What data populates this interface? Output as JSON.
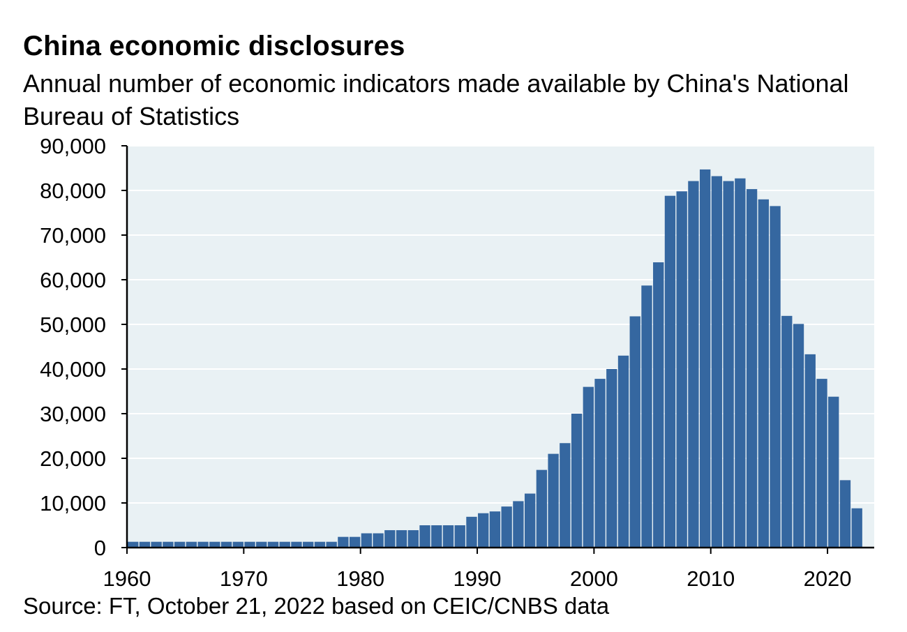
{
  "title": "China economic disclosures",
  "subtitle": "Annual number of economic indicators made available by China's National Bureau of Statistics",
  "source": "Source: FT, October 21, 2022 based on CEIC/CNBS data",
  "colors": {
    "bar": "#3567a0",
    "plot_background": "#e9f1f4",
    "gridline": "#ffffff",
    "axis": "#000000"
  },
  "chart_data": {
    "type": "bar",
    "title": "China economic disclosures",
    "subtitle": "Annual number of economic indicators made available by China's National Bureau of Statistics",
    "xlabel": "",
    "ylabel": "",
    "xlim": [
      1960,
      2024
    ],
    "ylim": [
      0,
      90000
    ],
    "x_ticks": [
      1960,
      1970,
      1980,
      1990,
      2000,
      2010,
      2020
    ],
    "x_tick_labels": [
      "1960",
      "1970",
      "1980",
      "1990",
      "2000",
      "2010",
      "2020"
    ],
    "y_ticks": [
      0,
      10000,
      20000,
      30000,
      40000,
      50000,
      60000,
      70000,
      80000,
      90000
    ],
    "y_tick_labels": [
      "0",
      "10,000",
      "20,000",
      "30,000",
      "40,000",
      "50,000",
      "60,000",
      "70,000",
      "80,000",
      "90,000"
    ],
    "grid": "horizontal",
    "legend": "none",
    "categories": [
      1960,
      1961,
      1962,
      1963,
      1964,
      1965,
      1966,
      1967,
      1968,
      1969,
      1970,
      1971,
      1972,
      1973,
      1974,
      1975,
      1976,
      1977,
      1978,
      1979,
      1980,
      1981,
      1982,
      1983,
      1984,
      1985,
      1986,
      1987,
      1988,
      1989,
      1990,
      1991,
      1992,
      1993,
      1994,
      1995,
      1996,
      1997,
      1998,
      1999,
      2000,
      2001,
      2002,
      2003,
      2004,
      2005,
      2006,
      2007,
      2008,
      2009,
      2010,
      2011,
      2012,
      2013,
      2014,
      2015,
      2016,
      2017,
      2018,
      2019,
      2020,
      2021,
      2022
    ],
    "values": [
      1300,
      1300,
      1300,
      1300,
      1300,
      1300,
      1300,
      1300,
      1300,
      1300,
      1300,
      1300,
      1300,
      1300,
      1300,
      1300,
      1300,
      1300,
      2400,
      2400,
      3200,
      3200,
      3900,
      3900,
      3900,
      5000,
      5000,
      5000,
      5000,
      6900,
      7700,
      8100,
      9200,
      10400,
      12100,
      17400,
      21000,
      23400,
      30000,
      36000,
      37800,
      40000,
      43000,
      51800,
      58700,
      63900,
      78800,
      79800,
      82100,
      84700,
      83200,
      82100,
      82700,
      80300,
      78000,
      76500,
      51900,
      50100,
      43300,
      37800,
      33800,
      15100,
      8800
    ]
  }
}
